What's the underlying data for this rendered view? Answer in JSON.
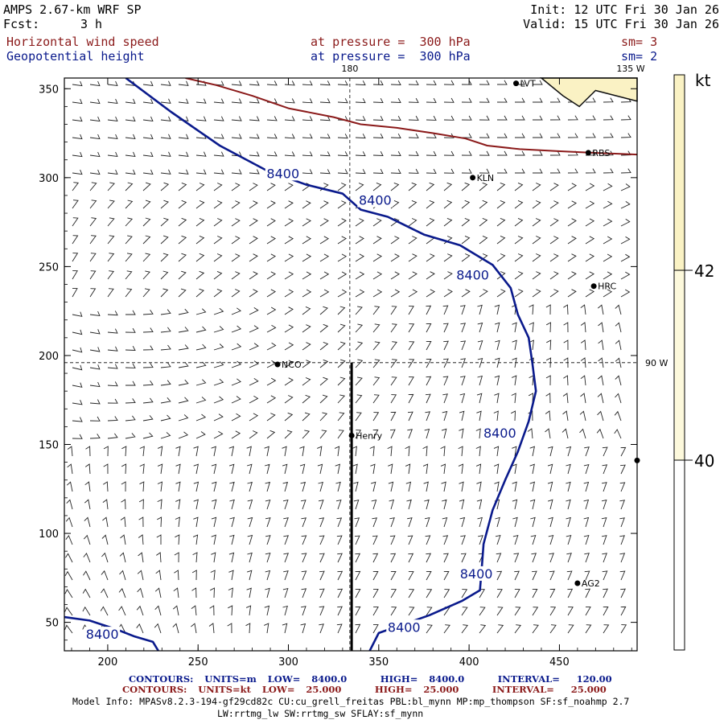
{
  "header": {
    "model": "AMPS 2.67-km WRF SP",
    "fcst_label": "Fcst:",
    "fcst_value": "3 h",
    "init": "Init: 12 UTC Fri 30 Jan 26",
    "valid": "Valid: 15 UTC Fri 30 Jan 26",
    "field1": {
      "name": "Horizontal wind speed",
      "level": "at pressure =  300 hPa",
      "sm": "sm= 3",
      "color": "#8b1a1a"
    },
    "field2": {
      "name": "Geopotential height",
      "level": "at pressure =  300 hPa",
      "sm": "sm= 2",
      "color": "#0a1a8c"
    }
  },
  "map_labels": {
    "lon_top": "180",
    "lon_top_right": "135 W",
    "lon_right": "90 W",
    "stations": [
      {
        "name": "LVT",
        "x": 426,
        "y": 353
      },
      {
        "name": "RBS",
        "x": 466,
        "y": 314
      },
      {
        "name": "KLN",
        "x": 402,
        "y": 300
      },
      {
        "name": "HRC",
        "x": 469,
        "y": 239
      },
      {
        "name": "NCO",
        "x": 294,
        "y": 195
      },
      {
        "name": "Henry",
        "x": 335,
        "y": 155
      },
      {
        "name": "",
        "x": 493,
        "y": 141
      },
      {
        "name": "AG2",
        "x": 460,
        "y": 72
      }
    ]
  },
  "chart_data": {
    "type": "contour",
    "xlim": [
      176,
      493
    ],
    "ylim": [
      34,
      356
    ],
    "x_ticks": [
      200,
      250,
      300,
      350,
      400,
      450
    ],
    "y_ticks": [
      50,
      100,
      150,
      200,
      250,
      300,
      350
    ],
    "guide_lines": {
      "vertical_x": 334,
      "horizontal_y": 196
    },
    "cross_section": {
      "x": 335,
      "y_from": 34,
      "y_to": 196
    },
    "height_contours": [
      {
        "label": "8400",
        "points": [
          [
            210,
            356
          ],
          [
            235,
            337
          ],
          [
            262,
            318
          ],
          [
            288,
            304
          ],
          [
            310,
            296
          ],
          [
            330,
            291
          ],
          [
            340,
            282
          ],
          [
            355,
            278
          ],
          [
            375,
            268
          ],
          [
            395,
            262
          ],
          [
            413,
            251
          ],
          [
            423,
            238
          ],
          [
            427,
            223
          ],
          [
            433,
            210
          ],
          [
            435,
            196
          ],
          [
            437,
            180
          ],
          [
            433,
            163
          ],
          [
            427,
            146
          ],
          [
            420,
            130
          ],
          [
            413,
            113
          ],
          [
            408,
            94
          ],
          [
            407,
            80
          ],
          [
            406,
            68
          ],
          [
            396,
            62
          ],
          [
            378,
            54
          ],
          [
            350,
            44
          ],
          [
            345,
            34
          ]
        ],
        "label_positions": [
          [
            297,
            302
          ],
          [
            348,
            287
          ],
          [
            402,
            245
          ],
          [
            417,
            156
          ],
          [
            404,
            77
          ],
          [
            364,
            47
          ]
        ]
      },
      {
        "label": "8400",
        "points": [
          [
            176,
            53
          ],
          [
            190,
            51
          ],
          [
            205,
            46
          ],
          [
            215,
            42
          ],
          [
            225,
            39
          ],
          [
            228,
            34
          ]
        ],
        "label_positions": [
          [
            197,
            43
          ]
        ]
      }
    ],
    "wind_contours": [
      {
        "label": "25",
        "points": [
          [
            243,
            356
          ],
          [
            260,
            352
          ],
          [
            280,
            346
          ],
          [
            300,
            339
          ],
          [
            325,
            334
          ],
          [
            340,
            330
          ],
          [
            360,
            328
          ],
          [
            380,
            325
          ],
          [
            398,
            322
          ],
          [
            410,
            318
          ],
          [
            428,
            316
          ],
          [
            448,
            315
          ],
          [
            468,
            314
          ],
          [
            493,
            313
          ]
        ]
      }
    ],
    "colorbar": {
      "units": "kt",
      "levels": [
        40,
        42
      ],
      "colors": [
        "#ffffff",
        "#fdf9dc",
        "#faf2c4"
      ]
    }
  },
  "footer": {
    "line1": {
      "contours": "CONTOURS:",
      "units": "UNITS=m",
      "low": "LOW=",
      "low_v": "8400.0",
      "high": "HIGH=",
      "high_v": "8400.0",
      "interval": "INTERVAL=",
      "interval_v": "120.00"
    },
    "line2": {
      "contours": "CONTOURS:",
      "units": "UNITS=kt",
      "low": "LOW=",
      "low_v": "25.000",
      "high": "HIGH=",
      "high_v": "25.000",
      "interval": "INTERVAL=",
      "interval_v": "25.000"
    },
    "model_info": "Model Info: MPASv8.2.3-194-gf29cd82c CU:cu_grell_freitas PBL:bl_mynn MP:mp_thompson SF:sf_noahmp 2.7",
    "model_info2": "LW:rrtmg_lw SW:rrtmg_sw SFLAY:sf_mynn"
  }
}
